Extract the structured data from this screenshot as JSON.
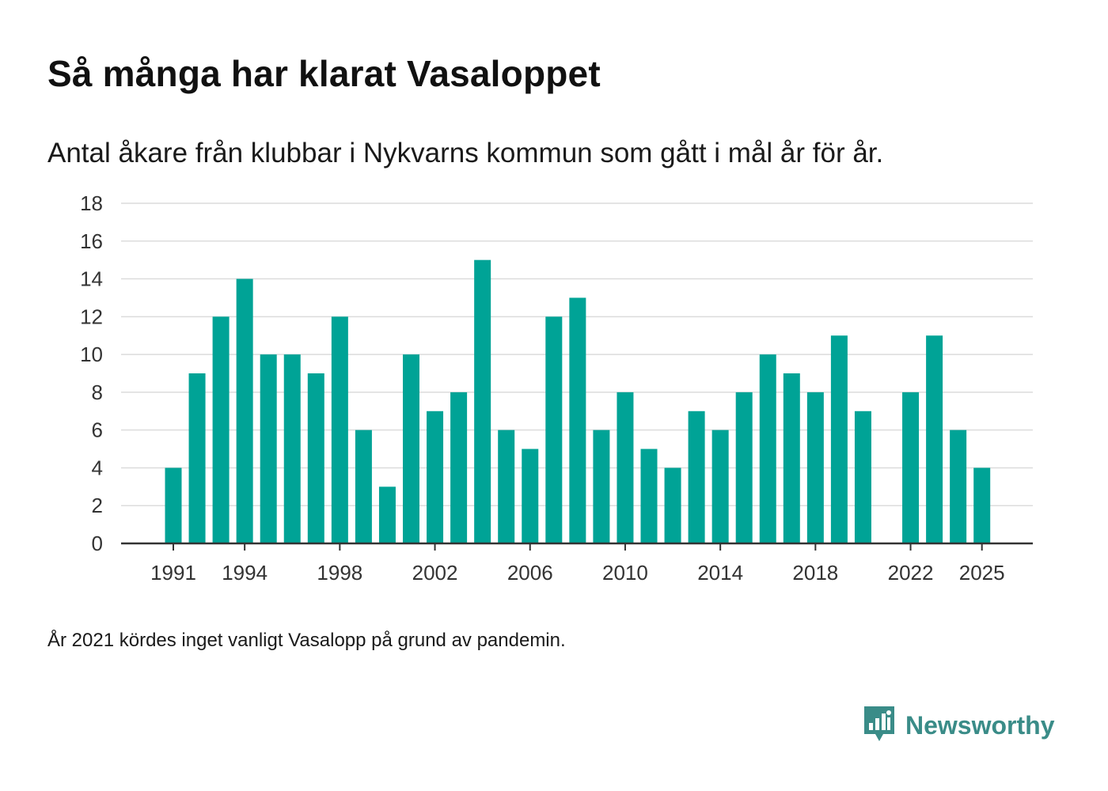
{
  "title": "Så många har klarat Vasaloppet",
  "subtitle": "Antal åkare från klubbar i Nykvarns kommun som gått i mål år för år.",
  "footnote": "År 2021 kördes inget vanligt Vasalopp på grund av pandemin.",
  "brand": {
    "name": "Newsworthy",
    "icon": "newsworthy-logo-icon",
    "color": "#3a8c88"
  },
  "colors": {
    "bar": "#00a396",
    "grid": "#dcdcdc",
    "axis": "#333333"
  },
  "chart_data": {
    "type": "bar",
    "title": "Så många har klarat Vasaloppet",
    "xlabel": "",
    "ylabel": "",
    "ylim": [
      0,
      18
    ],
    "yticks": [
      "0",
      "2",
      "4",
      "6",
      "8",
      "10",
      "12",
      "14",
      "16",
      "18"
    ],
    "categories": [
      1991,
      1992,
      1993,
      1994,
      1995,
      1996,
      1997,
      1998,
      1999,
      2000,
      2001,
      2002,
      2003,
      2004,
      2005,
      2006,
      2007,
      2008,
      2009,
      2010,
      2011,
      2012,
      2013,
      2014,
      2015,
      2016,
      2017,
      2018,
      2019,
      2020,
      2021,
      2022,
      2023,
      2024,
      2025
    ],
    "values": [
      4,
      9,
      12,
      14,
      10,
      10,
      9,
      12,
      6,
      3,
      10,
      7,
      8,
      15,
      6,
      5,
      12,
      13,
      6,
      8,
      5,
      4,
      7,
      6,
      8,
      10,
      9,
      8,
      11,
      7,
      null,
      8,
      11,
      6,
      4
    ],
    "xtick_labels": [
      "1991",
      "1994",
      "1998",
      "2002",
      "2006",
      "2010",
      "2014",
      "2018",
      "2022",
      "2025"
    ],
    "grid": true
  }
}
